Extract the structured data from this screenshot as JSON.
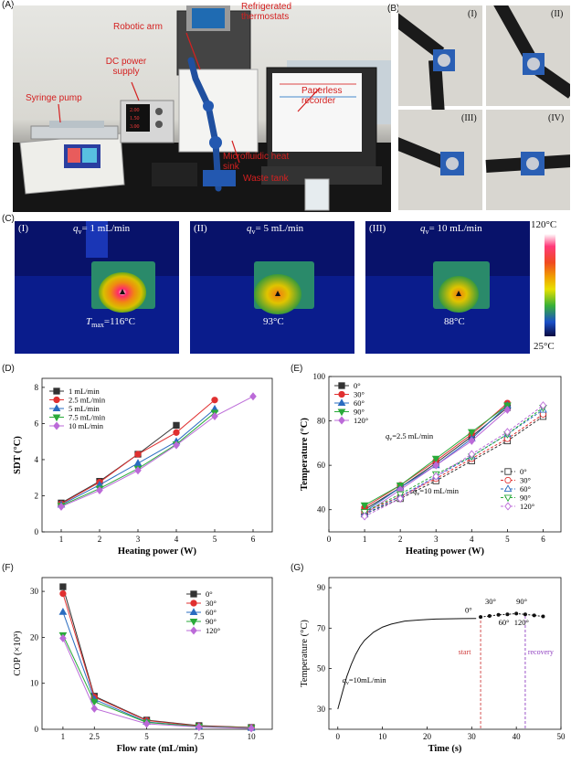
{
  "panelA": {
    "letter": "(A)",
    "callouts": {
      "syringe_pump": "Syringe pump",
      "dc_power": "DC power\nsupply",
      "robotic_arm": "Robotic arm",
      "thermostats": "Refrigerated\nthermostats",
      "recorder": "Paperless\nrecorder",
      "heat_sink": "Microfluidic heat\nsink",
      "waste_tank": "Waste tank"
    },
    "dc_display": [
      "2.00",
      "1.50",
      "3.00"
    ]
  },
  "panelB": {
    "letter": "(B)",
    "subpanels": [
      "(I)",
      "(II)",
      "(III)",
      "(IV)"
    ]
  },
  "panelC": {
    "letter": "(C)",
    "images": [
      {
        "roman": "(I)",
        "q_sym": "q",
        "q_sub": "v",
        "q_val": "= 1 mL/min",
        "t_prefix": "T",
        "t_sub": "max",
        "t_val": "=116°C",
        "simple_temp": ""
      },
      {
        "roman": "(II)",
        "q_sym": "q",
        "q_sub": "v",
        "q_val": "= 5 mL/min",
        "t_prefix": "",
        "t_sub": "",
        "t_val": "",
        "simple_temp": "93°C"
      },
      {
        "roman": "(III)",
        "q_sym": "q",
        "q_sub": "v",
        "q_val": "= 10 mL/min",
        "t_prefix": "",
        "t_sub": "",
        "t_val": "",
        "simple_temp": "88°C"
      }
    ],
    "colorbar": {
      "max": "120°C",
      "min": "25°C"
    }
  },
  "chart_data": [
    {
      "panel": "(D)",
      "type": "line",
      "xlabel": "Heating power (W)",
      "ylabel": "SDT (°C)",
      "xlim": [
        0.5,
        6.5
      ],
      "ylim": [
        0,
        8.5
      ],
      "xticks": [
        1,
        2,
        3,
        4,
        5,
        6
      ],
      "yticks": [
        0,
        2,
        4,
        6,
        8
      ],
      "legend_position": "top-left",
      "series": [
        {
          "name": "1 mL/min",
          "color": "#333333",
          "marker": "square",
          "x": [
            1,
            2,
            3,
            4
          ],
          "values": [
            1.6,
            2.8,
            4.3,
            5.9
          ]
        },
        {
          "name": "2.5 mL/min",
          "color": "#e03030",
          "marker": "circle",
          "x": [
            1,
            2,
            3,
            4,
            5
          ],
          "values": [
            1.55,
            2.75,
            4.3,
            5.5,
            7.3
          ]
        },
        {
          "name": "5 mL/min",
          "color": "#2a6cc0",
          "marker": "triangle",
          "x": [
            1,
            2,
            3,
            4,
            5
          ],
          "values": [
            1.5,
            2.6,
            3.8,
            5.0,
            6.8
          ]
        },
        {
          "name": "7.5 mL/min",
          "color": "#2aaa3a",
          "marker": "triangle-down",
          "x": [
            1,
            2,
            3,
            4,
            5
          ],
          "values": [
            1.45,
            2.4,
            3.5,
            4.85,
            6.6
          ]
        },
        {
          "name": "10 mL/min",
          "color": "#bb6ad8",
          "marker": "diamond",
          "x": [
            1,
            2,
            3,
            4,
            5,
            6
          ],
          "values": [
            1.4,
            2.3,
            3.4,
            4.8,
            6.4,
            7.5
          ]
        }
      ]
    },
    {
      "panel": "(E)",
      "type": "line",
      "xlabel": "Heating power (W)",
      "ylabel": "Temperature (°C)",
      "xlim": [
        0,
        6.5
      ],
      "ylim": [
        30,
        100
      ],
      "xticks": [
        0,
        1,
        2,
        3,
        4,
        5,
        6
      ],
      "yticks": [
        40,
        60,
        80,
        100
      ],
      "legend_position": "top-left and bottom-right",
      "annotations": [
        {
          "sym": "q",
          "sub": "v",
          "text": "=2.5 mL/min"
        },
        {
          "sym": "q",
          "sub": "v",
          "text": "=10 mL/min"
        }
      ],
      "series": [
        {
          "name": "0°",
          "color": "#333333",
          "marker": "square",
          "filled": true,
          "x": [
            1,
            2,
            3,
            4,
            5
          ],
          "values": [
            40,
            50,
            61,
            73,
            86
          ]
        },
        {
          "name": "30°",
          "color": "#e03030",
          "marker": "circle",
          "filled": true,
          "x": [
            1,
            2,
            3,
            4,
            5
          ],
          "values": [
            41,
            51,
            62,
            74,
            88
          ]
        },
        {
          "name": "60°",
          "color": "#2a6cc0",
          "marker": "triangle",
          "filled": true,
          "x": [
            1,
            2,
            3,
            4,
            5
          ],
          "values": [
            39,
            50,
            60,
            72,
            87
          ]
        },
        {
          "name": "90°",
          "color": "#2aaa3a",
          "marker": "triangle-down",
          "filled": true,
          "x": [
            1,
            2,
            3,
            4,
            5
          ],
          "values": [
            42,
            51,
            63,
            75,
            87
          ]
        },
        {
          "name": "120°",
          "color": "#bb6ad8",
          "marker": "diamond",
          "filled": true,
          "x": [
            1,
            2,
            3,
            4,
            5
          ],
          "values": [
            38,
            49,
            60,
            71,
            85
          ]
        },
        {
          "name": "0°",
          "color": "#333333",
          "marker": "square",
          "filled": false,
          "x": [
            1,
            2,
            3,
            4,
            5,
            6
          ],
          "values": [
            38,
            45,
            53,
            62,
            71,
            82
          ]
        },
        {
          "name": "30°",
          "color": "#e03030",
          "marker": "circle",
          "filled": false,
          "x": [
            1,
            2,
            3,
            4,
            5,
            6
          ],
          "values": [
            39,
            46,
            54,
            63,
            72,
            83
          ]
        },
        {
          "name": "60°",
          "color": "#2a6cc0",
          "marker": "triangle",
          "filled": false,
          "x": [
            1,
            2,
            3,
            4,
            5,
            6
          ],
          "values": [
            38,
            46,
            55,
            64,
            74,
            85
          ]
        },
        {
          "name": "90°",
          "color": "#2aaa3a",
          "marker": "triangle-down",
          "filled": false,
          "x": [
            1,
            2,
            3,
            4,
            5,
            6
          ],
          "values": [
            39,
            47,
            56,
            64,
            74,
            86
          ]
        },
        {
          "name": "120°",
          "color": "#bb6ad8",
          "marker": "diamond",
          "filled": false,
          "x": [
            1,
            2,
            3,
            4,
            5,
            6
          ],
          "values": [
            37,
            45,
            55,
            65,
            75,
            87
          ]
        }
      ]
    },
    {
      "panel": "(F)",
      "type": "line",
      "xlabel": "Flow rate (mL/min)",
      "ylabel": "COP (×10³)",
      "xlim": [
        0,
        11
      ],
      "ylim": [
        0,
        33
      ],
      "xticks": [
        1,
        2.5,
        5,
        7.5,
        10
      ],
      "yticks": [
        0,
        10,
        20,
        30
      ],
      "legend_position": "top-right",
      "series": [
        {
          "name": "0°",
          "color": "#333333",
          "marker": "square",
          "x": [
            1,
            2.5,
            5,
            7.5,
            10
          ],
          "values": [
            31,
            7.2,
            2.0,
            0.8,
            0.4
          ]
        },
        {
          "name": "30°",
          "color": "#e03030",
          "marker": "circle",
          "x": [
            1,
            2.5,
            5,
            7.5,
            10
          ],
          "values": [
            29.5,
            7.0,
            1.9,
            0.7,
            0.4
          ]
        },
        {
          "name": "60°",
          "color": "#2a6cc0",
          "marker": "triangle",
          "x": [
            1,
            2.5,
            5,
            7.5,
            10
          ],
          "values": [
            25.5,
            6.5,
            1.6,
            0.6,
            0.3
          ]
        },
        {
          "name": "90°",
          "color": "#2aaa3a",
          "marker": "triangle-down",
          "x": [
            1,
            2.5,
            5,
            7.5,
            10
          ],
          "values": [
            20.5,
            6.0,
            1.5,
            0.6,
            0.3
          ]
        },
        {
          "name": "120°",
          "color": "#bb6ad8",
          "marker": "diamond",
          "x": [
            1,
            2.5,
            5,
            7.5,
            10
          ],
          "values": [
            19.8,
            4.5,
            1.2,
            0.5,
            0.2
          ]
        }
      ]
    },
    {
      "panel": "(G)",
      "type": "line",
      "xlabel": "Time (s)",
      "ylabel": "Temperature (°C)",
      "xlim": [
        -2,
        50
      ],
      "ylim": [
        20,
        95
      ],
      "xticks": [
        0,
        10,
        20,
        30,
        40,
        50
      ],
      "yticks": [
        30,
        50,
        70,
        90
      ],
      "annotations": [
        {
          "sym": "q",
          "sub": "v",
          "text": "=10mL/min"
        },
        {
          "text": "0°"
        },
        {
          "text": "30°"
        },
        {
          "text": "90°"
        },
        {
          "text": "60°"
        },
        {
          "text": "120°"
        },
        {
          "text": "start",
          "color": "#d04040"
        },
        {
          "text": "recovery",
          "color": "#9040c0"
        }
      ],
      "vlines": [
        32,
        42
      ],
      "series": [
        {
          "name": "",
          "color": "#111111",
          "x": [
            0,
            1,
            2,
            3,
            4,
            5,
            6,
            8,
            10,
            12,
            15,
            18,
            20,
            22,
            25,
            28,
            31
          ],
          "values": [
            30,
            38,
            46,
            52,
            57,
            61,
            64,
            68,
            70.5,
            72,
            73.5,
            74,
            74.3,
            74.5,
            74.6,
            74.7,
            74.8
          ]
        },
        {
          "name": "",
          "color": "#111111",
          "marker": "circle",
          "x": [
            32,
            34,
            36,
            38,
            40,
            42,
            44,
            46
          ],
          "values": [
            75.5,
            76.0,
            76.6,
            76.8,
            77.2,
            76.8,
            76.3,
            75.8
          ]
        }
      ]
    }
  ]
}
